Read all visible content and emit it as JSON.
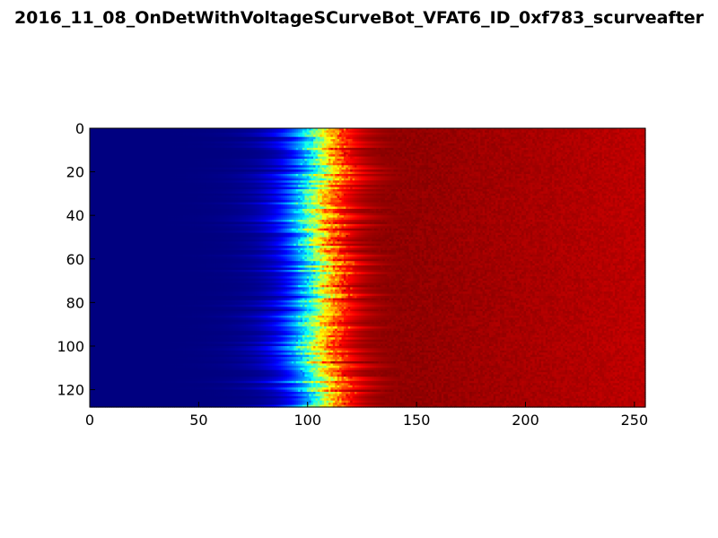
{
  "chart_data": {
    "type": "heatmap",
    "title": "2016_11_08_OnDetWithVoltageSCurveBot_VFAT6_ID_0xf783_scurveafter",
    "xlabel": "",
    "ylabel": "",
    "xlim": [
      0,
      255
    ],
    "ylim": [
      128,
      0
    ],
    "x_ticks": [
      0,
      50,
      100,
      150,
      200,
      250
    ],
    "y_ticks": [
      0,
      20,
      40,
      60,
      80,
      100,
      120
    ],
    "colormap": "jet",
    "value_range": [
      0,
      1
    ],
    "description_of_values": "per-row s-curve turn-on: low (blue) below ~85-100, rising through green/yellow near ~100-110, saturating red above ~115, slightly darker red toward high x",
    "rows": 128,
    "columns": 256,
    "turn_on_center_approx": 103,
    "turn_on_width_approx": 6,
    "grid": false,
    "legend": "none"
  },
  "colors": {
    "background": "#ffffff",
    "axes_frame": "#000000",
    "low": "#00007f",
    "high": "#7f0000"
  }
}
